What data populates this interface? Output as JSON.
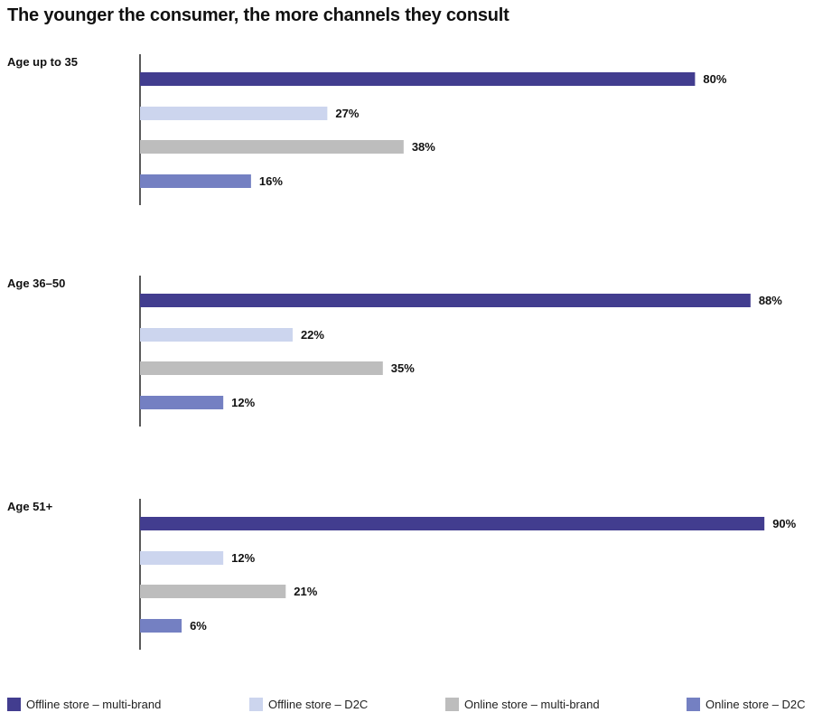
{
  "chart_data": {
    "type": "bar",
    "orientation": "horizontal",
    "title": "The younger the consumer, the more channels they consult",
    "value_suffix": "%",
    "xlim": [
      0,
      90
    ],
    "groups": [
      {
        "label": "Age up to 35",
        "values": [
          {
            "series": "Offline store – multi-brand",
            "value": 80,
            "label": "80%"
          },
          {
            "series": "Offline store – D2C",
            "value": 27,
            "label": "27%"
          },
          {
            "series": "Online store – multi-brand",
            "value": 38,
            "label": "38%"
          },
          {
            "series": "Online store – D2C",
            "value": 16,
            "label": "16%"
          }
        ]
      },
      {
        "label": "Age 36–50",
        "values": [
          {
            "series": "Offline store – multi-brand",
            "value": 88,
            "label": "88%"
          },
          {
            "series": "Offline store – D2C",
            "value": 22,
            "label": "22%"
          },
          {
            "series": "Online store – multi-brand",
            "value": 35,
            "label": "35%"
          },
          {
            "series": "Online store – D2C",
            "value": 12,
            "label": "12%"
          }
        ]
      },
      {
        "label": "Age 51+",
        "values": [
          {
            "series": "Offline store – multi-brand",
            "value": 90,
            "label": "90%"
          },
          {
            "series": "Offline store – D2C",
            "value": 12,
            "label": "12%"
          },
          {
            "series": "Online store – multi-brand",
            "value": 21,
            "label": "21%"
          },
          {
            "series": "Online store – D2C",
            "value": 6,
            "label": "6%"
          }
        ]
      }
    ],
    "series": [
      {
        "name": "Offline store – multi-brand",
        "color": "#423d8f"
      },
      {
        "name": "Offline store – D2C",
        "color": "#ccd5ee"
      },
      {
        "name": "Online store – multi-brand",
        "color": "#bdbdbd"
      },
      {
        "name": "Online store – D2C",
        "color": "#7480c2"
      }
    ],
    "legend_position": "bottom",
    "grid": false
  }
}
